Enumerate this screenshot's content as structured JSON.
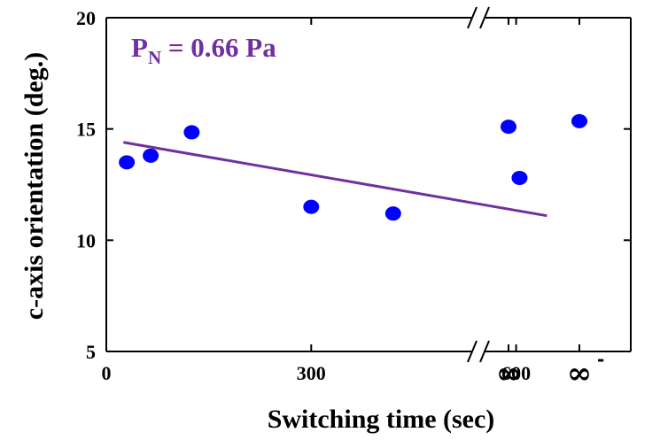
{
  "chart_data": {
    "type": "scatter",
    "title": "",
    "xlabel": "Switching time (sec)",
    "ylabel": "c-axis orientation (deg.)",
    "ylim": [
      5,
      20
    ],
    "xlim": [
      0,
      690
    ],
    "y_ticks": [
      "5",
      "10",
      "15",
      "20"
    ],
    "x_ticks": [
      {
        "value": 0,
        "label": "0"
      },
      {
        "value": 300,
        "label": "300"
      },
      {
        "value": 600,
        "label": "600"
      }
    ],
    "axis_break": true,
    "infinity_ticks": [
      {
        "label": "∞",
        "sup": ""
      },
      {
        "label": "∞",
        "sup": "-"
      }
    ],
    "annotation": {
      "main": "P",
      "sub": "N",
      "rest": " = 0.66 Pa"
    },
    "points": [
      {
        "x": 30,
        "y": 13.5
      },
      {
        "x": 65,
        "y": 13.8
      },
      {
        "x": 125,
        "y": 14.85
      },
      {
        "x": 300,
        "y": 11.5
      },
      {
        "x": 420,
        "y": 11.2
      },
      {
        "x": 605,
        "y": 12.8
      }
    ],
    "infinity_points": [
      {
        "slot": 0,
        "y": 15.1
      },
      {
        "slot": 1,
        "y": 15.35
      }
    ],
    "fit_line": {
      "x": [
        25,
        645
      ],
      "y": [
        14.4,
        11.1
      ]
    },
    "colors": {
      "points": "#0000ff",
      "fit_line": "#7030a0",
      "axes": "#000000"
    },
    "grid": false,
    "legend": "none"
  }
}
